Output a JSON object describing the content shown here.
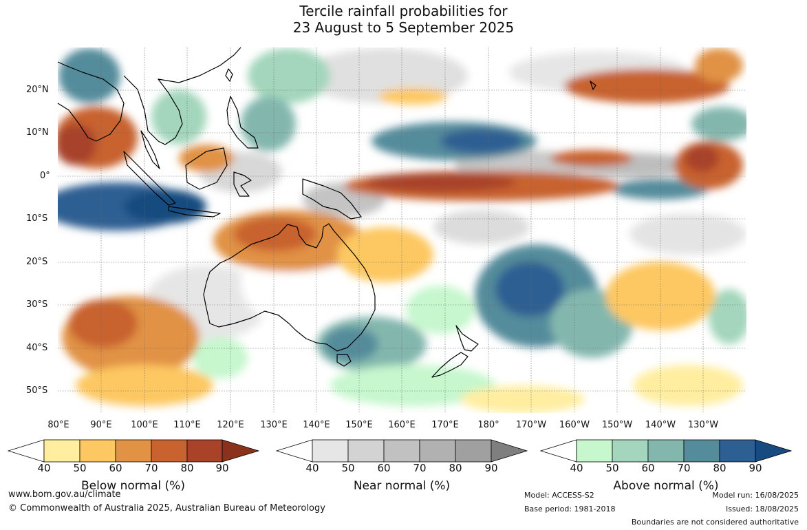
{
  "title": {
    "line1": "Tercile rainfall probabilities for",
    "line2": "23 August to 5 September 2025"
  },
  "map": {
    "latitude_labels": [
      "20°N",
      "10°N",
      "0°",
      "10°S",
      "20°S",
      "30°S",
      "40°S",
      "50°S"
    ],
    "longitude_labels": [
      "80°E",
      "90°E",
      "100°E",
      "110°E",
      "120°E",
      "130°E",
      "140°E",
      "150°E",
      "160°E",
      "170°E",
      "180°",
      "170°W",
      "160°W",
      "150°W",
      "140°W",
      "130°W"
    ],
    "colors": {
      "land_outline": "#000000",
      "gridline": "#6b6b6b"
    }
  },
  "legends": [
    {
      "title": "Below normal (%)",
      "ticks": [
        "40",
        "50",
        "60",
        "70",
        "80",
        "90"
      ],
      "colors": [
        "#ffeea0",
        "#fdc862",
        "#e19244",
        "#c8622f",
        "#a8432a",
        "#8a321c"
      ]
    },
    {
      "title": "Near normal (%)",
      "ticks": [
        "40",
        "50",
        "60",
        "70",
        "80",
        "90"
      ],
      "colors": [
        "#e6e6e6",
        "#d3d3d3",
        "#c1c1c1",
        "#b1b1b1",
        "#a0a0a0",
        "#7f7f7f"
      ]
    },
    {
      "title": "Above normal (%)",
      "ticks": [
        "40",
        "50",
        "60",
        "70",
        "80",
        "90"
      ],
      "colors": [
        "#c6f7cd",
        "#a3d6bc",
        "#83b7ae",
        "#558c9b",
        "#2e5f93",
        "#174b80"
      ]
    }
  ],
  "footer": {
    "website": "www.bom.gov.au/climate",
    "copyright": "© Commonwealth of Australia 2025, Australian Bureau of Meteorology",
    "model": "Model: ACCESS-S2",
    "base_period": "Base period: 1981-2018",
    "model_run": "Model run: 16/08/2025",
    "issued": "Issued: 18/08/2025",
    "disclaimer": "Boundaries are not considered authoritative"
  }
}
